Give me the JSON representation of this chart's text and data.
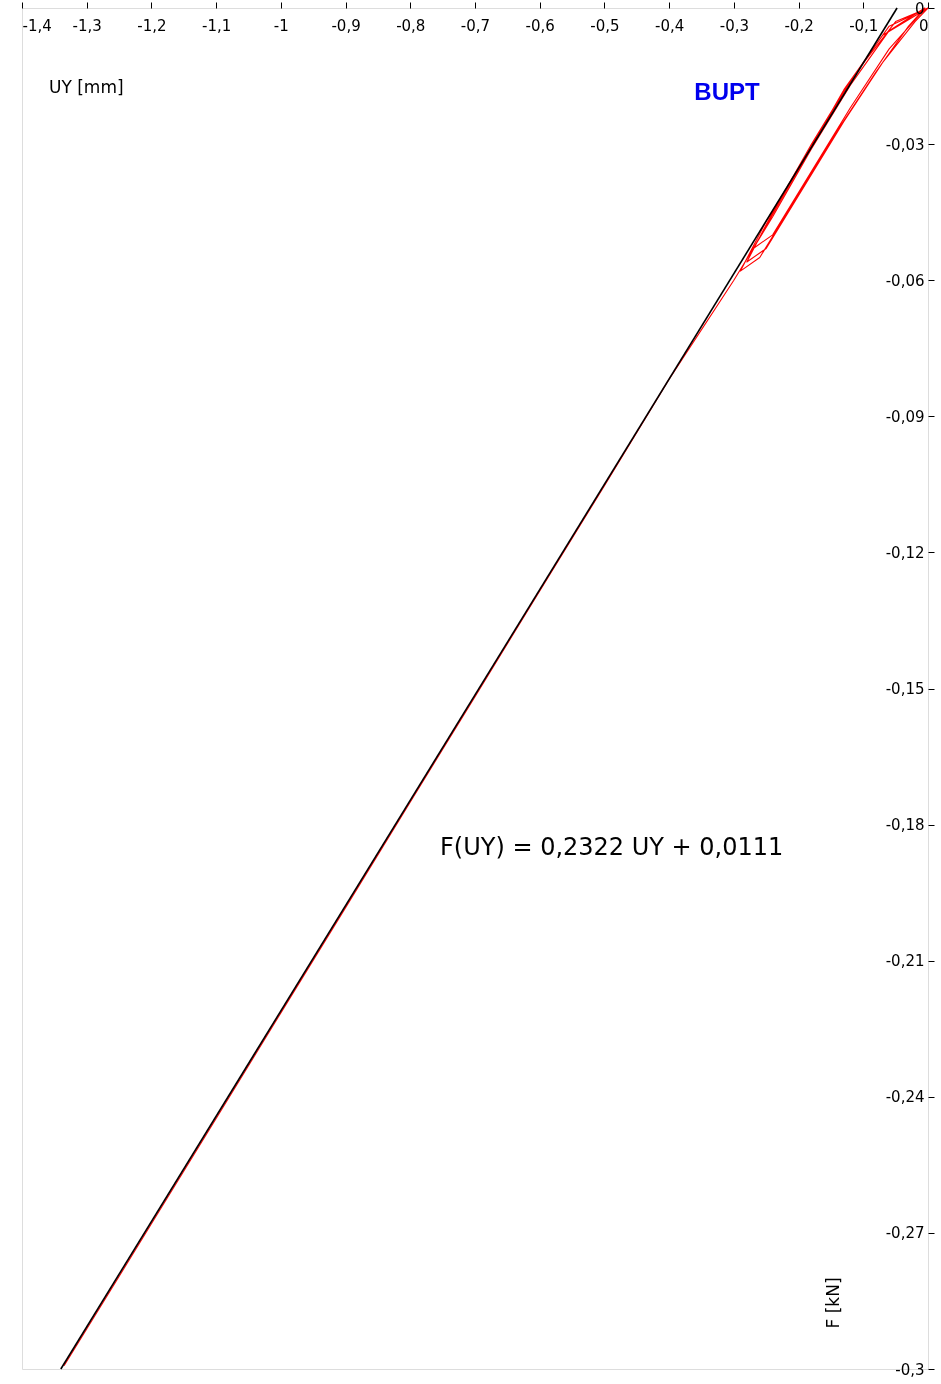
{
  "chart_data": {
    "type": "line",
    "xlabel": "UY [mm]",
    "ylabel": "F [kN]",
    "xlim": [
      -1.4,
      0
    ],
    "ylim": [
      -0.3,
      0
    ],
    "xticks": [
      {
        "value": -1.4,
        "label": "-1,4"
      },
      {
        "value": -1.3,
        "label": "-1,3"
      },
      {
        "value": -1.2,
        "label": "-1,2"
      },
      {
        "value": -1.1,
        "label": "-1,1"
      },
      -1,
      {
        "value": -0.9,
        "label": "-0,9"
      },
      {
        "value": -0.8,
        "label": "-0,8"
      },
      {
        "value": -0.7,
        "label": "-0,7"
      },
      {
        "value": -0.6,
        "label": "-0,6"
      },
      {
        "value": -0.5,
        "label": "-0,5"
      },
      {
        "value": -0.4,
        "label": "-0,4"
      },
      {
        "value": -0.3,
        "label": "-0,3"
      },
      {
        "value": -0.2,
        "label": "-0,2"
      },
      {
        "value": -0.1,
        "label": "-0,1"
      },
      0
    ],
    "yticks": [
      0,
      {
        "value": -0.03,
        "label": "-0,03"
      },
      {
        "value": -0.06,
        "label": "-0,06"
      },
      {
        "value": -0.09,
        "label": "-0,09"
      },
      {
        "value": -0.12,
        "label": "-0,12"
      },
      {
        "value": -0.15,
        "label": "-0,15"
      },
      {
        "value": -0.18,
        "label": "-0,18"
      },
      {
        "value": -0.21,
        "label": "-0,21"
      },
      {
        "value": -0.24,
        "label": "-0,24"
      },
      {
        "value": -0.27,
        "label": "-0,27"
      },
      {
        "value": -0.3,
        "label": "-0,3"
      }
    ],
    "grid": false,
    "series": [
      {
        "color": "#ff0000",
        "x": [
          0,
          -0.06,
          -0.12,
          -0.18,
          -0.24,
          -0.28,
          -0.25,
          -0.19,
          -0.13,
          -0.07,
          -0.02,
          0,
          -0.05,
          -0.11,
          -0.17,
          -0.23,
          -0.27,
          -0.24,
          -0.18,
          -0.12,
          -0.06,
          -0.01,
          0,
          -0.07,
          -0.13,
          -0.19,
          -0.25,
          -0.29,
          -0.26,
          -0.2,
          -0.14,
          -0.08,
          -0.03,
          -0.005,
          -0.06,
          -0.12,
          -0.18,
          -0.24,
          -0.3,
          -0.4,
          -0.5,
          -0.6,
          -0.7,
          -0.8,
          -0.9,
          -1.0,
          -1.1,
          -1.2,
          -1.3,
          -1.335
        ],
        "values": [
          0,
          -0.004,
          -0.016,
          -0.03,
          -0.045,
          -0.056,
          -0.053,
          -0.039,
          -0.025,
          -0.012,
          -0.003,
          0,
          -0.003,
          -0.014,
          -0.028,
          -0.043,
          -0.053,
          -0.05,
          -0.036,
          -0.022,
          -0.009,
          -0.001,
          0,
          -0.006,
          -0.018,
          -0.033,
          -0.047,
          -0.058,
          -0.055,
          -0.041,
          -0.027,
          -0.014,
          -0.004,
          0,
          -0.005,
          -0.017,
          -0.031,
          -0.046,
          -0.06,
          -0.0818,
          -0.1053,
          -0.1285,
          -0.1518,
          -0.175,
          -0.1983,
          -0.2215,
          -0.2448,
          -0.268,
          -0.2912,
          -0.2993
        ]
      },
      {
        "color": "#000000",
        "x": [
          -1.34,
          -0.0478
        ],
        "values": [
          -0.3,
          0
        ]
      }
    ],
    "annotations": [
      "F(UY) = 0,2322 UY + 0,0111",
      "BUPT"
    ]
  }
}
